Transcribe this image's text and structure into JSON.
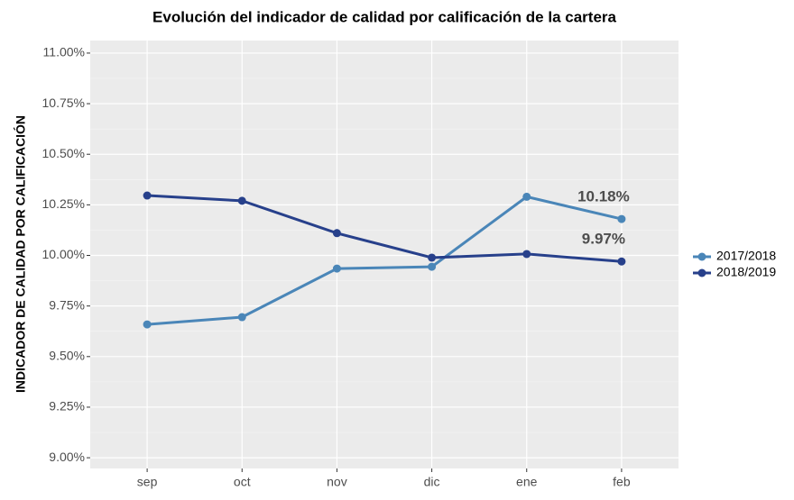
{
  "chart_data": {
    "type": "line",
    "title": "Evolución del indicador de calidad por calificación de la cartera",
    "y_label": "INDICADOR DE CALIDAD POR CALIFICACIÓN",
    "categories": [
      "sep",
      "oct",
      "nov",
      "dic",
      "ene",
      "feb"
    ],
    "series": [
      {
        "name": "2017/2018",
        "color": "#4a86b8",
        "values": [
          9.659,
          9.695,
          9.935,
          9.944,
          10.29,
          10.18
        ],
        "value_labels": [
          null,
          null,
          null,
          null,
          null,
          "10.18%"
        ]
      },
      {
        "name": "2018/2019",
        "color": "#27408b",
        "values": [
          10.296,
          10.27,
          10.11,
          9.989,
          10.007,
          9.97
        ],
        "value_labels": [
          null,
          null,
          null,
          null,
          null,
          "9.97%"
        ]
      }
    ],
    "ylim": [
      8.947,
      11.062
    ],
    "yticks": [
      {
        "value": 9,
        "label": "9.00%"
      },
      {
        "value": 9.25,
        "label": "9.25%"
      },
      {
        "value": 9.5,
        "label": "9.50%"
      },
      {
        "value": 9.75,
        "label": "9.75%"
      },
      {
        "value": 10,
        "label": "10.00%"
      },
      {
        "value": 10.25,
        "label": "10.25%"
      },
      {
        "value": 10.5,
        "label": "10.50%"
      },
      {
        "value": 10.75,
        "label": "10.75%"
      },
      {
        "value": 11,
        "label": "11.00%"
      }
    ],
    "grid": true,
    "legend": "right"
  }
}
